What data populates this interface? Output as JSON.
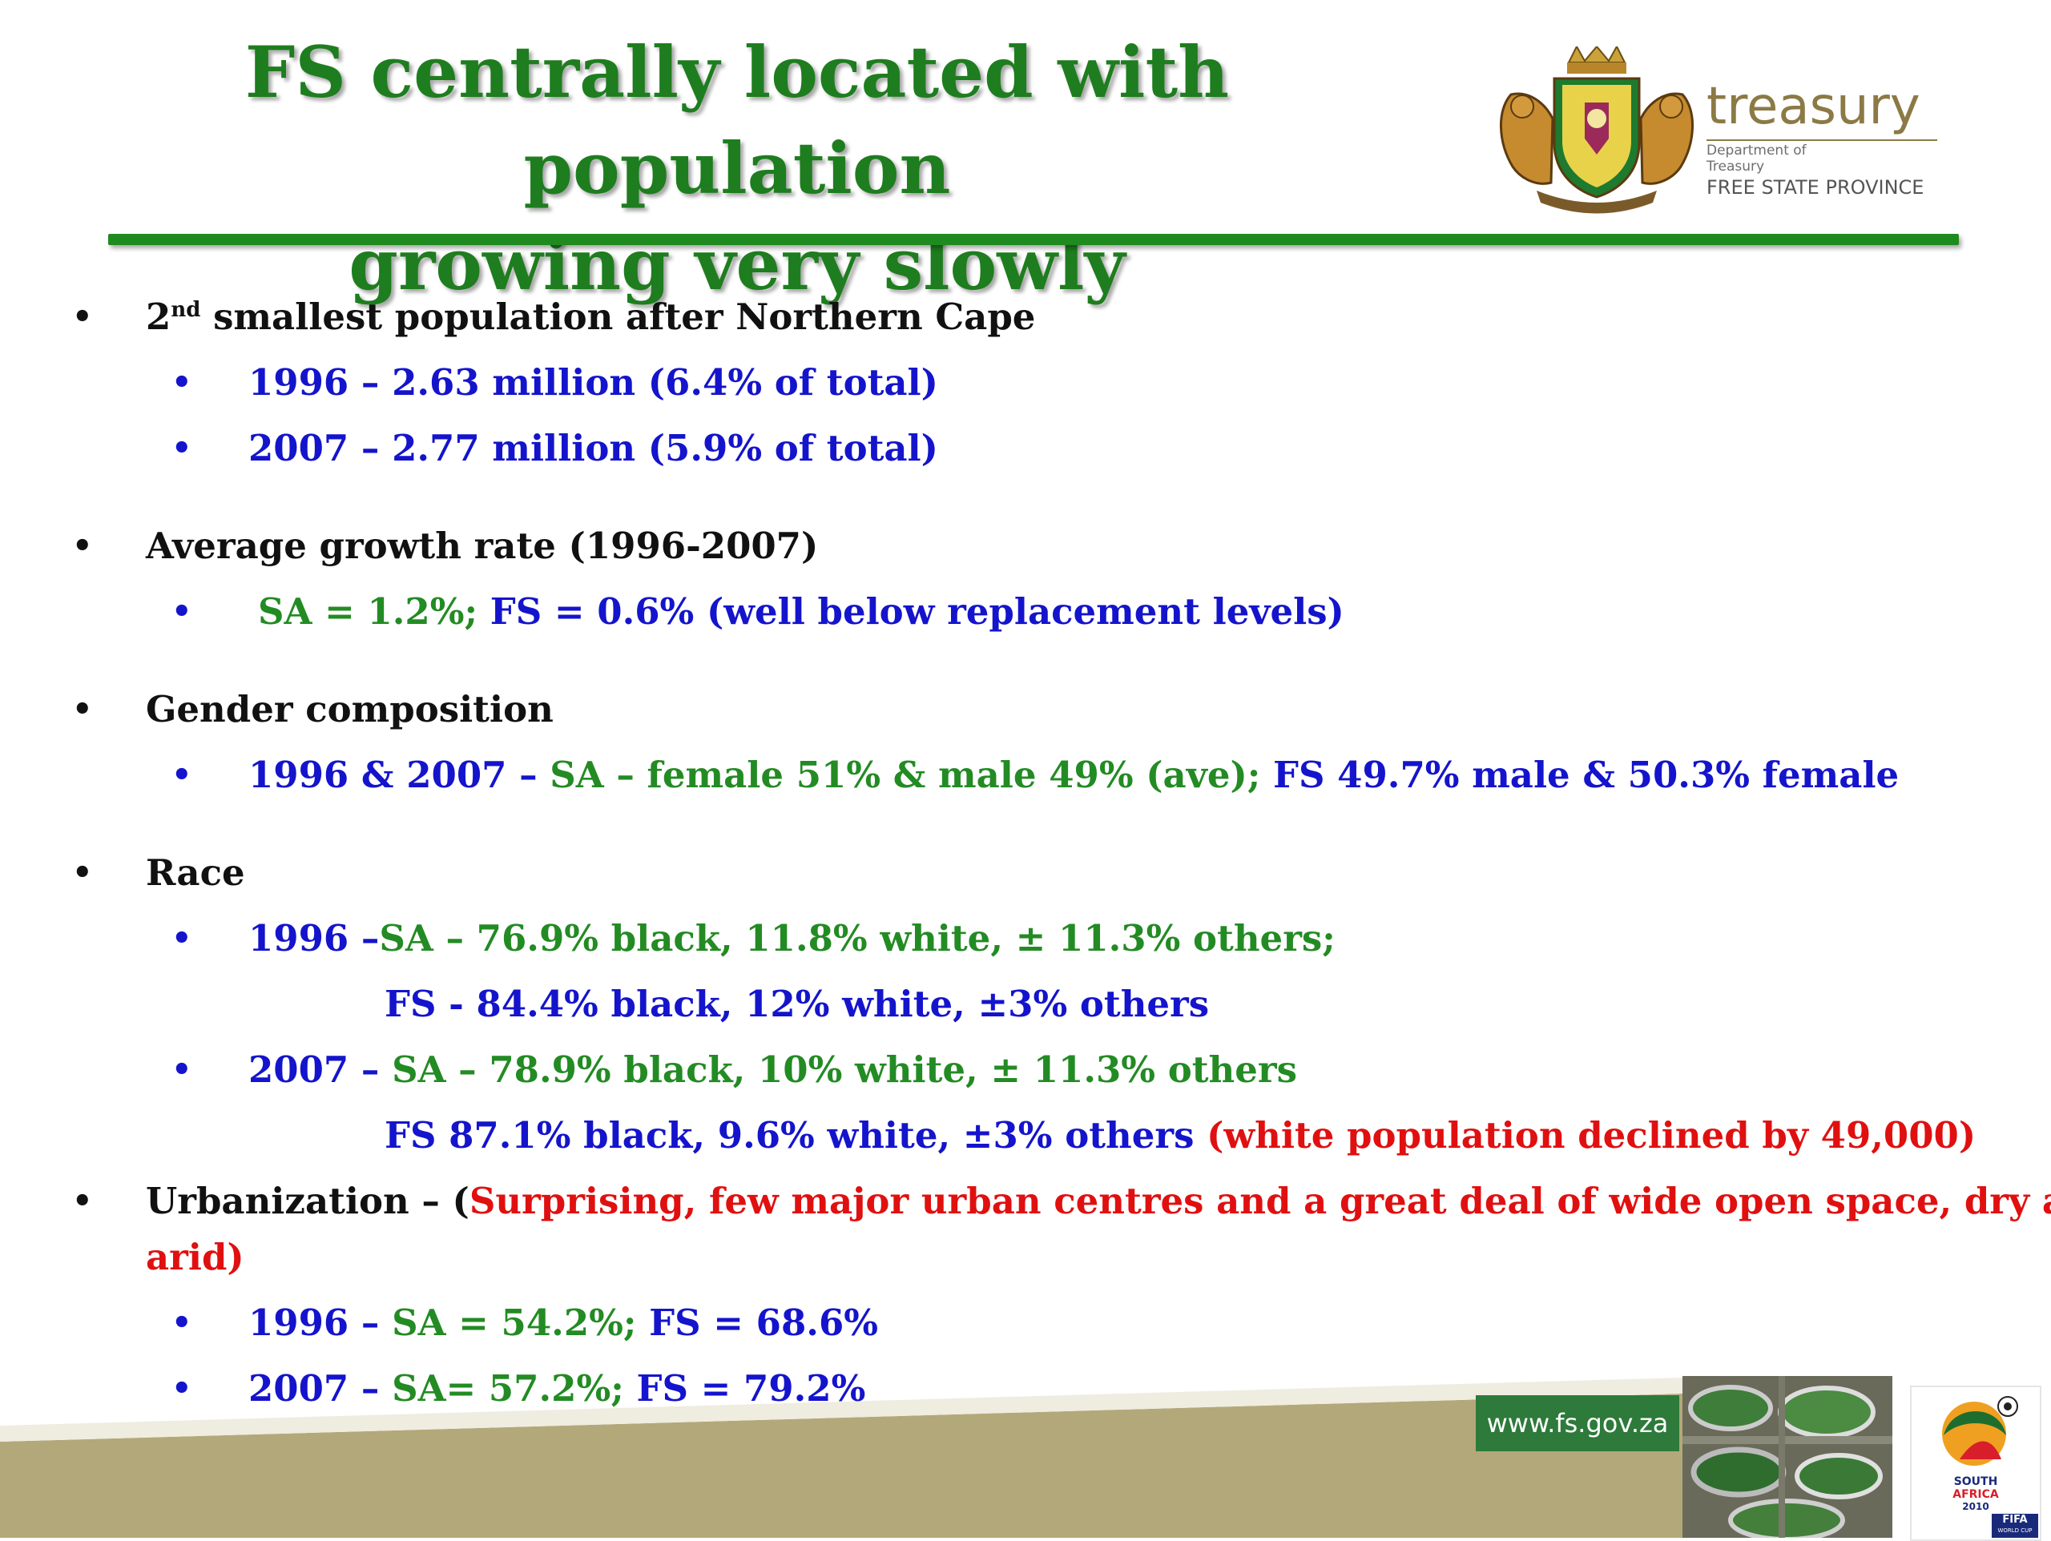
{
  "header": {
    "title_line1": "FS centrally located with population",
    "title_line2": "growing very slowly",
    "logo": {
      "word": "treasury",
      "dept_line1": "Department of",
      "dept_line2": "Treasury",
      "province": "FREE STATE PROVINCE"
    }
  },
  "content": {
    "pop_heading_a": "2",
    "pop_heading_sup": "nd",
    "pop_heading_b": " smallest population after Northern Cape",
    "pop_1996": "1996 – 2.63 million (6.4% of total)",
    "pop_2007": "2007 – 2.77 million (5.9% of total)",
    "growth_heading": "Average growth rate (1996-2007)",
    "growth_sa": "SA = 1.2%;",
    "growth_fs": " FS = 0.6% (well below replacement levels)",
    "gender_heading": "Gender composition",
    "gender_a": "1996 & 2007 – ",
    "gender_b": "SA – female 51% & male 49% (ave);",
    "gender_c": " FS 49.7% male & 50.3% female",
    "race_heading": "Race",
    "race_1996_a": "1996 –",
    "race_1996_b": "SA – 76.9% black, 11.8% white, ± 11.3% others;",
    "race_1996_fs": "FS - 84.4% black, 12% white, ±3% others",
    "race_2007_a": "2007 – ",
    "race_2007_b": "SA – 78.9% black, 10% white, ± 11.3% others",
    "race_2007_fs_a": "FS 87.1% black, 9.6% white, ±3% others",
    "race_2007_fs_b": " (white population declined by 49,000)",
    "urban_heading_a": "Urbanization – (",
    "urban_heading_b": "Surprising, few major urban centres and a great deal of wide open space, dry and",
    "urban_heading_c": "arid)",
    "urban_1996_a": "1996 – ",
    "urban_1996_b": "SA = 54.2%;",
    "urban_1996_c": " FS = 68.6%",
    "urban_2007_a": "2007 – ",
    "urban_2007_b": "SA= 57.2%;",
    "urban_2007_c": " FS = 79.2%",
    "bullet": "•"
  },
  "footer": {
    "url": "www.fs.gov.za",
    "wc_line1": "SOUTH",
    "wc_line2": "AFRICA",
    "wc_line3": "2010",
    "wc_line4": "FIFA",
    "wc_line5": "WORLD CUP"
  },
  "colors": {
    "title_green": "#1e7d1e",
    "text_blue": "#1414cc",
    "text_green": "#238b23",
    "text_red": "#e01010",
    "footer_tan": "#b3a87a",
    "url_green": "#2d7a3a"
  }
}
